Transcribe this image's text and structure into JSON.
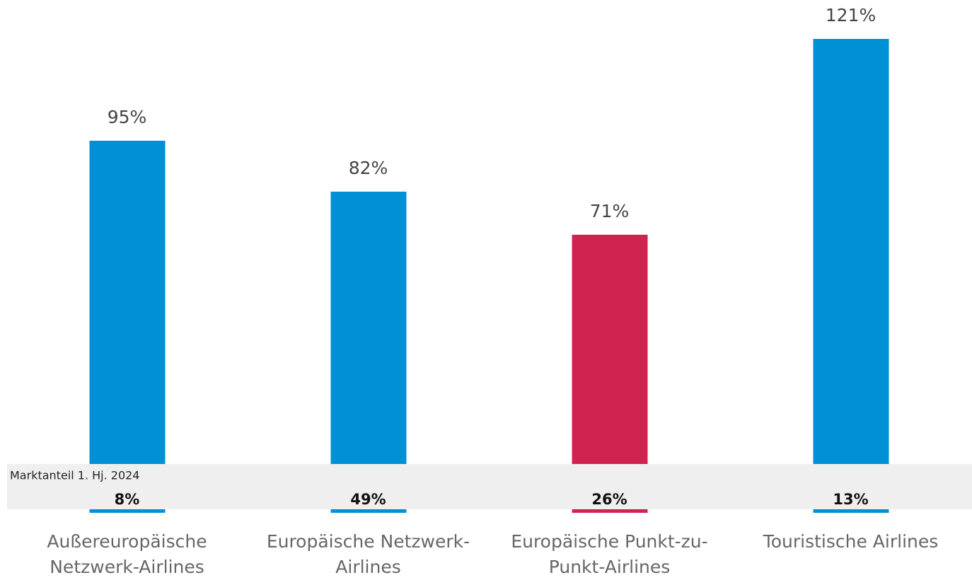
{
  "chart_data": {
    "type": "bar",
    "categories": [
      "Außereuropäische Netzwerk-Airlines",
      "Europäische Netzwerk-Airlines",
      "Europäische Punkt-zu-Punkt-Airlines",
      "Touristische Airlines"
    ],
    "values": [
      95,
      82,
      71,
      121
    ],
    "value_labels": [
      "95%",
      "82%",
      "71%",
      "121%"
    ],
    "colors": [
      "#0090d6",
      "#0090d6",
      "#d0234f",
      "#0090d6"
    ],
    "ylim": [
      0,
      121
    ],
    "market_share": {
      "label": "Marktanteil 1. Hj. 2024",
      "values": [
        8,
        49,
        26,
        13
      ],
      "value_labels": [
        "8%",
        "49%",
        "26%",
        "13%"
      ]
    }
  }
}
